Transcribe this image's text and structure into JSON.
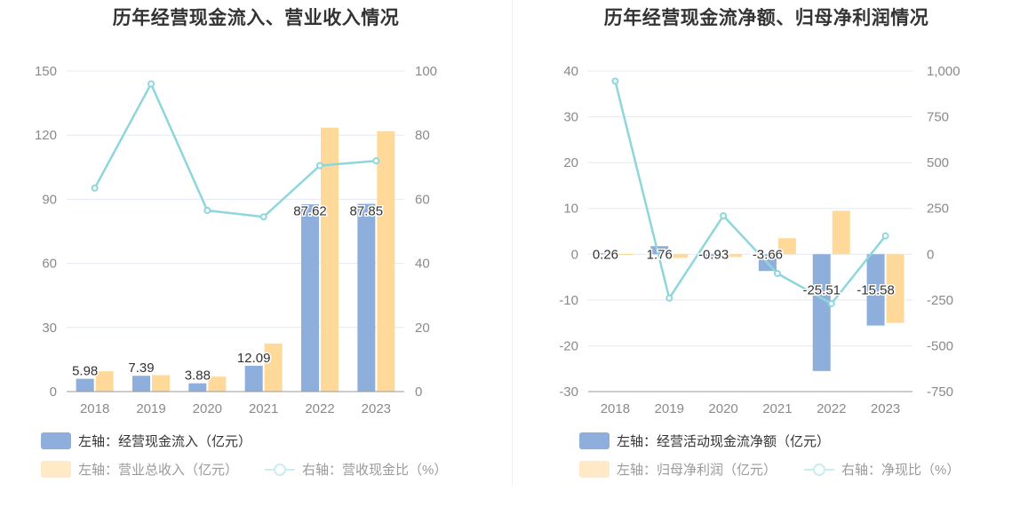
{
  "left": {
    "title": "历年经营现金流入、营业收入情况",
    "legend": [
      {
        "label": "左轴：经营现金流入（亿元）",
        "color": "#8eaedc"
      },
      {
        "label": "左轴：营业总收入（亿元）",
        "color": "#ffe9c6"
      },
      {
        "label": "右轴：营收现金比（%）",
        "color": "#8ed6dc"
      }
    ]
  },
  "right": {
    "title": "历年经营现金流净额、归母净利润情况",
    "legend": [
      {
        "label": "左轴：经营活动现金流净额（亿元）",
        "color": "#8eaedc"
      },
      {
        "label": "左轴：归母净利润（亿元）",
        "color": "#ffe9c6"
      },
      {
        "label": "右轴：净现比（%）",
        "color": "#8ed6dc"
      }
    ]
  },
  "chart_data": [
    {
      "type": "bar",
      "title": "历年经营现金流入、营业收入情况",
      "categories": [
        "2018",
        "2019",
        "2020",
        "2021",
        "2022",
        "2023"
      ],
      "left_axis": {
        "ticks": [
          "0",
          "30",
          "60",
          "90",
          "120",
          "150"
        ],
        "ylim": [
          0,
          150
        ]
      },
      "right_axis": {
        "ticks": [
          "0",
          "20",
          "40",
          "60",
          "80",
          "100"
        ],
        "ylim": [
          0,
          100
        ]
      },
      "series": [
        {
          "name": "左轴：经营现金流入（亿元）",
          "type": "bar",
          "axis": "left",
          "color": "#8eaedc",
          "values": [
            5.98,
            7.39,
            3.88,
            12.09,
            87.62,
            87.85
          ],
          "labels": [
            "5.98",
            "7.39",
            "3.88",
            "12.09",
            "87.62",
            "87.85"
          ]
        },
        {
          "name": "左轴：营业总收入（亿元）",
          "type": "bar",
          "axis": "left",
          "color": "#ffd99a",
          "values": [
            9.5,
            7.7,
            7.0,
            22.5,
            123.5,
            121.8
          ]
        },
        {
          "name": "右轴：营收现金比（%）",
          "type": "line",
          "axis": "right",
          "color": "#8ed6dc",
          "values": [
            63.5,
            96.0,
            56.5,
            54.5,
            70.5,
            72.0
          ]
        }
      ],
      "grid": true,
      "legend_position": "bottom-left"
    },
    {
      "type": "bar",
      "title": "历年经营现金流净额、归母净利润情况",
      "categories": [
        "2018",
        "2019",
        "2020",
        "2021",
        "2022",
        "2023"
      ],
      "left_axis": {
        "ticks": [
          "-30",
          "-20",
          "-10",
          "0",
          "10",
          "20",
          "30",
          "40"
        ],
        "ylim": [
          -30,
          40
        ]
      },
      "right_axis": {
        "ticks": [
          "-750",
          "-500",
          "-250",
          "0",
          "250",
          "500",
          "750",
          "1,000"
        ],
        "ylim": [
          -750,
          1000
        ]
      },
      "series": [
        {
          "name": "左轴：经营活动现金流净额（亿元）",
          "type": "bar",
          "axis": "left",
          "color": "#8eaedc",
          "values": [
            0.26,
            1.76,
            -0.93,
            -3.66,
            -25.51,
            -15.58
          ],
          "labels": [
            "0.26",
            "1.76",
            "-0.93",
            "-3.66",
            "-25.51",
            "-15.58"
          ]
        },
        {
          "name": "左轴：归母净利润（亿元）",
          "type": "bar",
          "axis": "left",
          "color": "#ffd99a",
          "values": [
            0.05,
            -0.8,
            -0.6,
            3.5,
            9.5,
            -15.0
          ]
        },
        {
          "name": "右轴：净现比（%）",
          "type": "line",
          "axis": "right",
          "color": "#8ed6dc",
          "values": [
            945,
            -240,
            210,
            -105,
            -270,
            100
          ]
        }
      ],
      "grid": true,
      "legend_position": "bottom-left"
    }
  ]
}
